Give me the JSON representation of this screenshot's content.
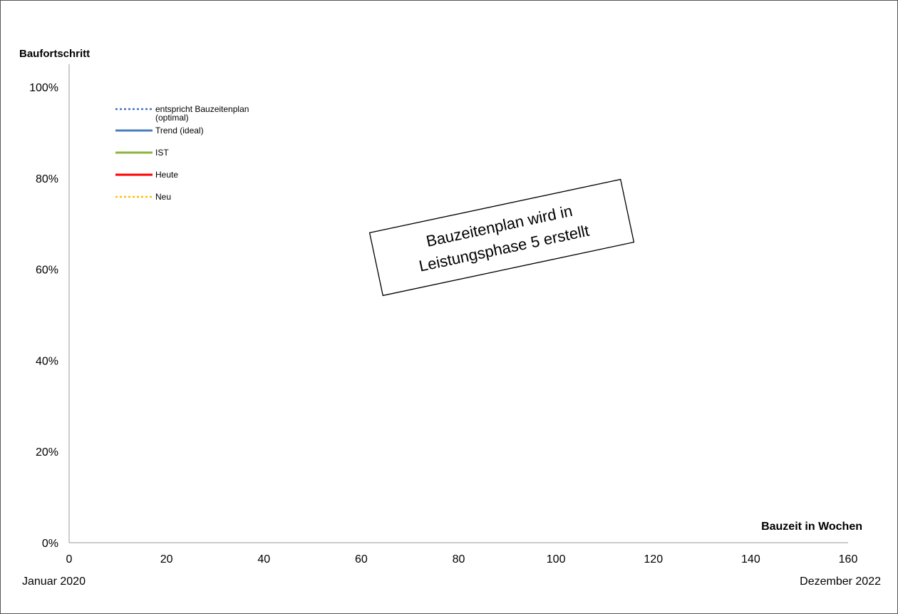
{
  "chart_data": {
    "type": "line",
    "ylabel": "Baufortschritt",
    "xlabel": "Bauzeit in Wochen",
    "xlim": [
      0,
      160
    ],
    "ylim": [
      0,
      1
    ],
    "x_ticks": [
      0,
      20,
      40,
      60,
      80,
      100,
      120,
      140,
      160
    ],
    "x_tick_labels": [
      "0",
      "20",
      "40",
      "60",
      "80",
      "100",
      "120",
      "140",
      "160"
    ],
    "y_ticks": [
      0,
      0.2,
      0.4,
      0.6,
      0.8,
      1.0
    ],
    "y_tick_labels": [
      "0%",
      "20%",
      "40%",
      "60%",
      "80%",
      "100%"
    ],
    "start_label": "Januar 2020",
    "end_label": "Dezember 2022",
    "grid": false,
    "legend_position": "top-left",
    "legend": [
      {
        "label_lines": [
          "entspricht Bauzeitenplan",
          "(optimal)"
        ],
        "color": "#4472C4",
        "style": "dotted"
      },
      {
        "label_lines": [
          "Trend (ideal)"
        ],
        "color": "#4A7EBB",
        "style": "solid"
      },
      {
        "label_lines": [
          "IST"
        ],
        "color": "#8DB33F",
        "style": "solid"
      },
      {
        "label_lines": [
          "Heute"
        ],
        "color": "#FF0000",
        "style": "solid"
      },
      {
        "label_lines": [
          "Neu"
        ],
        "color": "#FFC000",
        "style": "dotted"
      }
    ],
    "series": [],
    "annotation": {
      "lines": [
        "Bauzeitenplan wird in",
        "Leistungsphase 5 erstellt"
      ]
    }
  }
}
